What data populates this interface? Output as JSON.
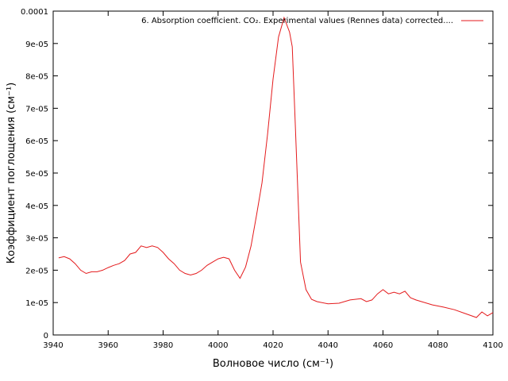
{
  "chart_data": {
    "type": "line",
    "xlabel": "Волновое число (см⁻¹)",
    "ylabel": "Коэффициент поглощения (см⁻¹)",
    "legend": "top-right",
    "xlim": [
      3940,
      4100
    ],
    "xticks": [
      3940,
      3960,
      3980,
      4000,
      4020,
      4040,
      4060,
      4080,
      4100
    ],
    "ylim": [
      0,
      0.0001
    ],
    "yticks": [
      0,
      {
        "value": 1e-05,
        "label": "1e-05"
      },
      {
        "value": 2e-05,
        "label": "2e-05"
      },
      {
        "value": 3e-05,
        "label": "3e-05"
      },
      {
        "value": 4e-05,
        "label": "4e-05"
      },
      {
        "value": 5e-05,
        "label": "5e-05"
      },
      {
        "value": 6e-05,
        "label": "6e-05"
      },
      {
        "value": 7e-05,
        "label": "7e-05"
      },
      {
        "value": 8e-05,
        "label": "8e-05"
      },
      {
        "value": 9e-05,
        "label": "9e-05"
      },
      0.0001
    ],
    "x": [
      3942,
      3944,
      3946,
      3948,
      3950,
      3952,
      3954,
      3956,
      3958,
      3960,
      3962,
      3964,
      3966,
      3968,
      3970,
      3972,
      3974,
      3976,
      3978,
      3980,
      3982,
      3984,
      3986,
      3988,
      3990,
      3992,
      3994,
      3996,
      3998,
      4000,
      4002,
      4004,
      4006,
      4008,
      4010,
      4012,
      4014,
      4016,
      4018,
      4020,
      4022,
      4024,
      4026,
      4027,
      4028,
      4029,
      4030,
      4032,
      4034,
      4036,
      4040,
      4044,
      4048,
      4052,
      4054,
      4056,
      4058,
      4060,
      4062,
      4064,
      4066,
      4068,
      4070,
      4072,
      4074,
      4078,
      4082,
      4086,
      4090,
      4094,
      4096,
      4098,
      4100
    ],
    "series": [
      {
        "name": "6. Absorption coefficient. CO₂. Experimental values (Rennes data) corrected....",
        "color": "#e41a1c",
        "values": [
          2.38e-05,
          2.42e-05,
          2.35e-05,
          2.2e-05,
          2e-05,
          1.9e-05,
          1.95e-05,
          1.95e-05,
          2e-05,
          2.08e-05,
          2.15e-05,
          2.2e-05,
          2.3e-05,
          2.5e-05,
          2.55e-05,
          2.75e-05,
          2.7e-05,
          2.75e-05,
          2.7e-05,
          2.55e-05,
          2.35e-05,
          2.2e-05,
          2e-05,
          1.9e-05,
          1.85e-05,
          1.9e-05,
          2e-05,
          2.15e-05,
          2.25e-05,
          2.35e-05,
          2.4e-05,
          2.35e-05,
          2e-05,
          1.75e-05,
          2.1e-05,
          2.75e-05,
          3.7e-05,
          4.7e-05,
          6.2e-05,
          7.9e-05,
          9.2e-05,
          9.8e-05,
          9.35e-05,
          8.9e-05,
          6.7e-05,
          4.45e-05,
          2.25e-05,
          1.4e-05,
          1.1e-05,
          1.03e-05,
          9.6e-06,
          9.8e-06,
          1.08e-05,
          1.12e-05,
          1.03e-05,
          1.08e-05,
          1.27e-05,
          1.4e-05,
          1.27e-05,
          1.32e-05,
          1.27e-05,
          1.35e-05,
          1.15e-05,
          1.08e-05,
          1.03e-05,
          9.3e-06,
          8.6e-06,
          7.8e-06,
          6.6e-06,
          5.4e-06,
          7.1e-06,
          5.9e-06,
          6.9e-06
        ]
      }
    ]
  }
}
